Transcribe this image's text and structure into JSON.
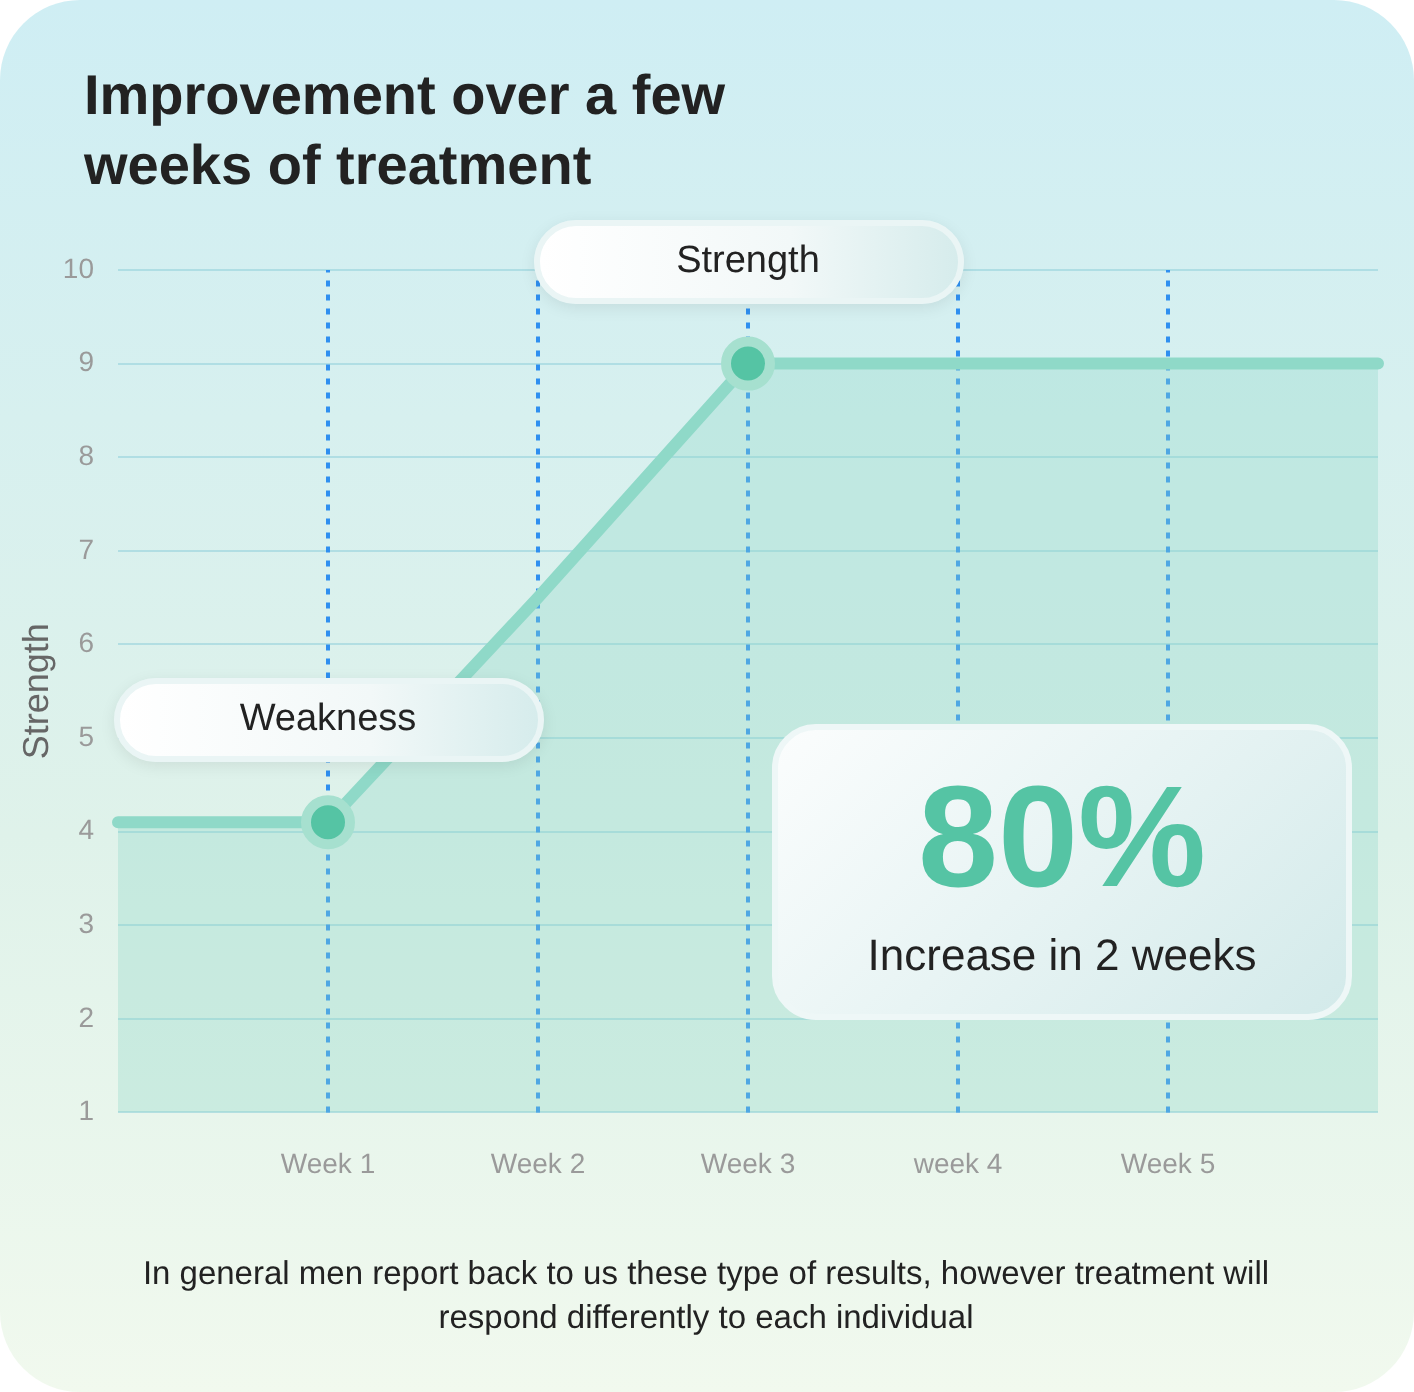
{
  "chart_data": {
    "type": "area",
    "title": "Improvement over a few weeks of treatment",
    "ylabel": "Strength",
    "categories": [
      null,
      "Week 1",
      "Week 2",
      "Week 3",
      "week 4",
      "Week 5",
      null
    ],
    "ylim": [
      1,
      10
    ],
    "yticks": [
      1,
      2,
      3,
      4,
      5,
      6,
      7,
      8,
      9,
      10
    ],
    "series": [
      {
        "color": "#8fd9c8",
        "values": [
          4.1,
          4.1,
          6.5,
          9,
          9,
          9,
          9
        ],
        "marker": "none"
      },
      {
        "type": "scatter",
        "color": "#55c4a4",
        "x": [
          "Week 1",
          "Week 3"
        ],
        "values": [
          4.1,
          9
        ],
        "marker": "circle"
      }
    ],
    "ref_lines": [
      {
        "axis": "x",
        "value": "Week 1",
        "color": "#2f8ff0",
        "line_style": "dotted"
      },
      {
        "axis": "x",
        "value": "Week 2",
        "color": "#2f8ff0",
        "line_style": "dotted"
      },
      {
        "axis": "x",
        "value": "Week 3",
        "color": "#2f8ff0",
        "line_style": "dotted"
      },
      {
        "axis": "x",
        "value": "week 4",
        "color": "#2f8ff0",
        "line_style": "dotted"
      },
      {
        "axis": "x",
        "value": "Week 5",
        "color": "#2f8ff0",
        "line_style": "dotted"
      }
    ],
    "annotations": [
      {
        "text": "Weakness",
        "x": "Week 1",
        "y": 4.1
      },
      {
        "text": "Strength",
        "x": "Week 3",
        "y": 9
      },
      "80%",
      "Increase in 2 weeks",
      "In general men report back to us these type of results, however treatment will respond differently to each individual"
    ],
    "grid": "y",
    "legend": false
  }
}
